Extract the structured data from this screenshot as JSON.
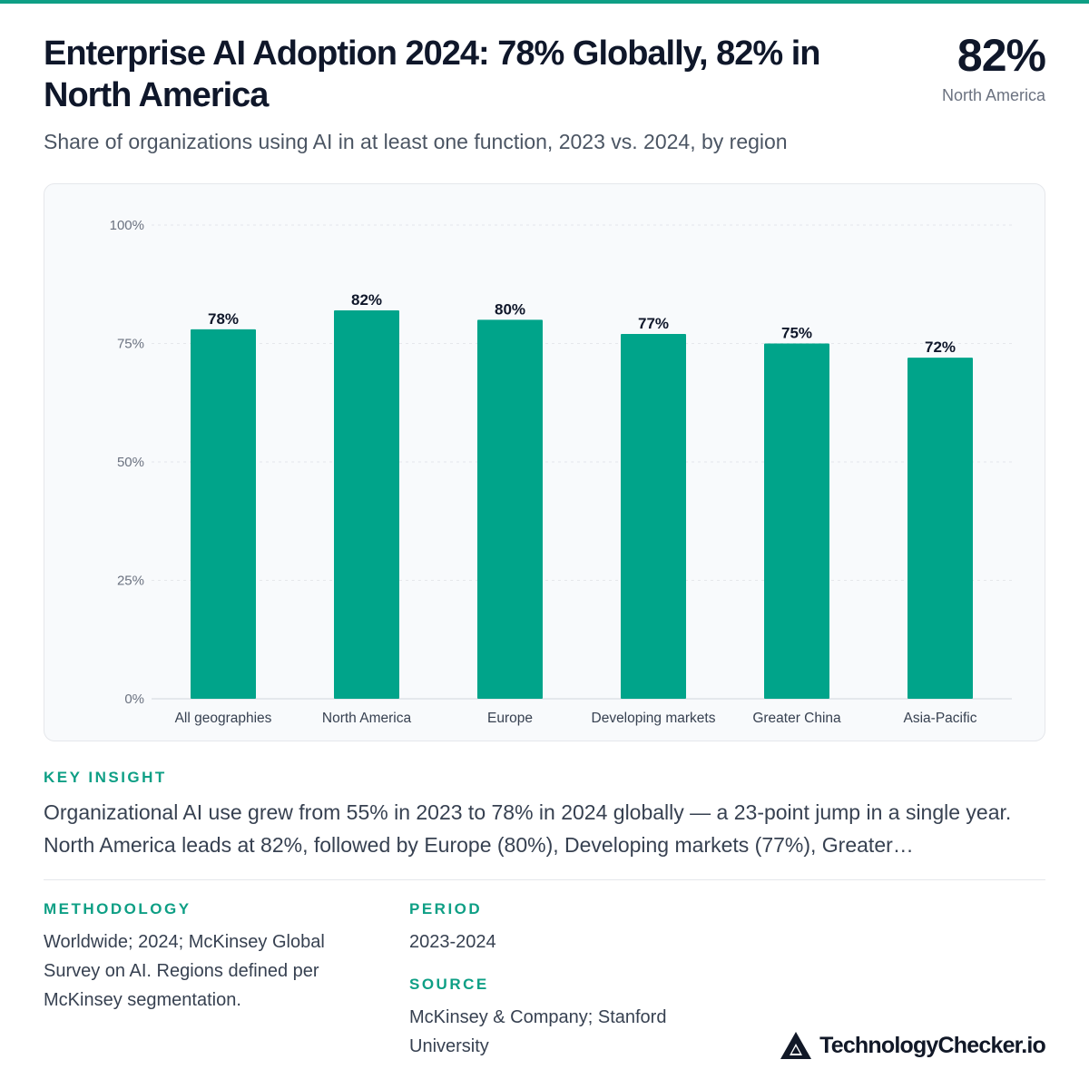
{
  "header": {
    "title": "Enterprise AI Adoption 2024: 78% Globally, 82% in North America",
    "subtitle": "Share of organizations using AI in at least one function, 2023 vs. 2024, by region",
    "kpi_value": "82%",
    "kpi_label": "North America"
  },
  "colors": {
    "accent": "#0e9f85",
    "bar": "#00a48a",
    "text_dark": "#0f172a",
    "text_muted": "#6b7280"
  },
  "chart_data": {
    "type": "bar",
    "categories": [
      "All geographies",
      "North America",
      "Europe",
      "Developing markets",
      "Greater China",
      "Asia-Pacific"
    ],
    "values": [
      78,
      82,
      80,
      77,
      75,
      72
    ],
    "data_labels": [
      "78%",
      "82%",
      "80%",
      "77%",
      "75%",
      "72%"
    ],
    "y_ticks": [
      0,
      25,
      50,
      75,
      100
    ],
    "y_tick_labels": [
      "0%",
      "25%",
      "50%",
      "75%",
      "100%"
    ],
    "ylim": [
      0,
      100
    ],
    "grid": true,
    "title": "",
    "xlabel": "",
    "ylabel": ""
  },
  "insight": {
    "label": "KEY INSIGHT",
    "text": "Organizational AI use grew from 55% in 2023 to 78% in 2024 globally — a 23-point jump in a single year. North America leads at 82%, followed by Europe (80%), Developing markets (77%), Greater…"
  },
  "methodology": {
    "label": "METHODOLOGY",
    "text": "Worldwide; 2024; McKinsey Global Survey on AI. Regions defined per McKinsey segmentation."
  },
  "period": {
    "label": "PERIOD",
    "text": "2023-2024"
  },
  "source": {
    "label": "SOURCE",
    "text": "McKinsey & Company; Stanford University"
  },
  "brand": {
    "name": "TechnologyChecker.io",
    "icon": "triangle-logo-icon"
  }
}
